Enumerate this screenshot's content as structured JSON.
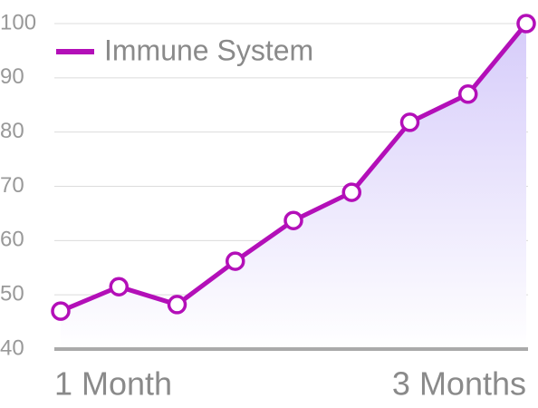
{
  "chart_data": {
    "type": "line",
    "categories": [
      "1 Month",
      null,
      null,
      null,
      null,
      null,
      null,
      null,
      "3 Months"
    ],
    "series": [
      {
        "name": "Immune System",
        "color": "#b30fb8",
        "values": [
          47,
          51.5,
          48.2,
          56.2,
          63.7,
          68.9,
          81.8,
          87,
          100
        ]
      }
    ],
    "ylim": [
      40,
      100
    ],
    "yticks": [
      40,
      50,
      60,
      70,
      80,
      90,
      100
    ],
    "grid": true,
    "area": true,
    "legend": "top-left"
  }
}
